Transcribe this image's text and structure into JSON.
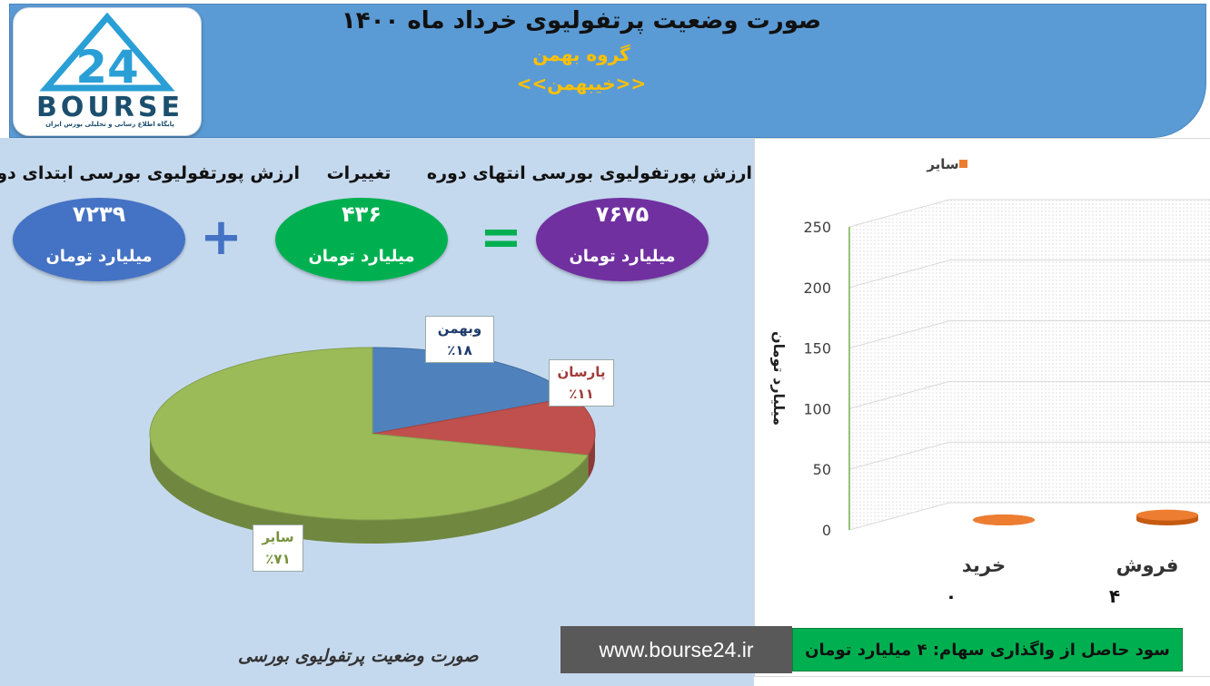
{
  "header": {
    "title": "صورت وضعیت پرتفولیوی خرداد ماه ۱۴۰۰",
    "company": "گروه بهمن",
    "symbol": "<<خیبهمن>>"
  },
  "logo": {
    "mark": "24",
    "text": "BOURSE",
    "subtext": "پایگاه اطلاع رسانی و تحلیلی بورس ایران"
  },
  "summary": {
    "end_label": "ارزش پورتفولیوی بورسی انتهای دوره",
    "change_label": "تغییرات",
    "start_label": "ارزش پورتفولیوی بورسی ابتدای دوره",
    "end_value": "۷۶۷۵",
    "change_value": "۴۳۶",
    "start_value": "۷۲۳۹",
    "unit": "میلیارد تومان",
    "plus": "+",
    "equals": "=",
    "colors": {
      "end": "#7030a0",
      "change": "#00b050",
      "start": "#4472c4"
    }
  },
  "chart_data": [
    {
      "type": "pie",
      "series": [
        {
          "name": "وبهمن",
          "label": "٪۱۸",
          "value": 18,
          "color": "#4f81bd"
        },
        {
          "name": "پارسان",
          "label": "٪۱۱",
          "value": 11,
          "color": "#c0504d"
        },
        {
          "name": "سایر",
          "label": "٪۷۱",
          "value": 71,
          "color": "#9bbb59"
        }
      ]
    },
    {
      "type": "bar",
      "legend": {
        "label": "سایر",
        "position": "top-right",
        "color": "#ed7d31"
      },
      "categories": [
        "فروش",
        "خرید"
      ],
      "values": [
        4,
        0
      ],
      "value_labels": [
        "۴",
        "۰"
      ],
      "ylabel": "میلیارد تومان",
      "ylim": [
        0,
        250
      ],
      "yticks": [
        0,
        50,
        100,
        150,
        200,
        250
      ],
      "grid": true
    }
  ],
  "footer": {
    "caption": "صورت وضعیت پرتفولیوی بورسی",
    "url": "www.bourse24.ir",
    "profit": "سود حاصل از واگذاری سهام: ۴ میلیارد تومان"
  }
}
